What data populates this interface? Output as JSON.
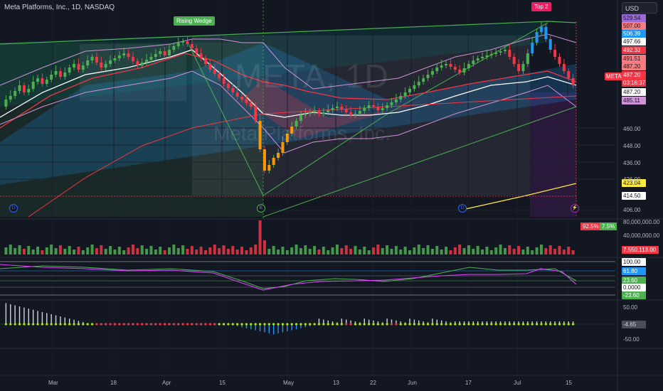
{
  "header": {
    "symbol_title": "Meta Platforms, Inc., 1D, NASDAQ"
  },
  "currency_button": "USD",
  "watermark": {
    "ticker": "META, 1D",
    "company": "Meta Platforms, Inc."
  },
  "tags": {
    "pattern": "Rising Wedge",
    "top": "Top 2",
    "symbol": "META"
  },
  "price_axis": {
    "labels": [
      "460.00",
      "448.00",
      "436.00",
      "426.00",
      "406.00"
    ],
    "boxes": [
      {
        "text": "529.54",
        "bg": "#9c6bd6",
        "fg": "#131722"
      },
      {
        "text": "507.00",
        "bg": "#f77c80",
        "fg": "#131722"
      },
      {
        "text": "506.39",
        "bg": "#2196f3",
        "fg": "#ffffff"
      },
      {
        "text": "497.66",
        "bg": "#ffffff",
        "fg": "#131722"
      },
      {
        "text": "492.33",
        "bg": "#f23645",
        "fg": "#ffffff"
      },
      {
        "text": "491.51",
        "bg": "#f77c80",
        "fg": "#131722"
      },
      {
        "text": "487.20",
        "bg": "#f77c80",
        "fg": "#131722"
      },
      {
        "text": "487.20",
        "bg": "#f23645",
        "fg": "#ffffff"
      },
      {
        "text": "03:16:37",
        "bg": "#f23645",
        "fg": "#ffffff"
      },
      {
        "text": "487.20",
        "bg": "#ffffff",
        "fg": "#131722"
      },
      {
        "text": "485.11",
        "bg": "#ce93d8",
        "fg": "#131722"
      },
      {
        "text": "423.04",
        "bg": "#ffeb3b",
        "fg": "#131722"
      },
      {
        "text": "414.50",
        "bg": "#ffffff",
        "fg": "#131722"
      }
    ]
  },
  "volume_axis": {
    "labels": [
      "80,000,000.00",
      "40,000,000.00"
    ],
    "current": "7,550,113.00",
    "pct_red": "92.5%",
    "pct_green": "7.5%"
  },
  "rsi_axis": {
    "labels": [
      "100.00",
      "61.80",
      "23.60",
      "0.0000",
      "-23.60"
    ]
  },
  "osc_axis": {
    "labels": [
      "50.00",
      "-4.65",
      "-50.00"
    ]
  },
  "x_axis": {
    "labels": [
      "Mar",
      "18",
      "Apr",
      "15",
      "May",
      "13",
      "22",
      "Jun",
      "17",
      "Jul",
      "15"
    ]
  },
  "events": {
    "d": "D",
    "e": "E"
  },
  "colors": {
    "up": "#4caf50",
    "down": "#f23645",
    "bg": "#131722",
    "grid": "#1f2430"
  }
}
